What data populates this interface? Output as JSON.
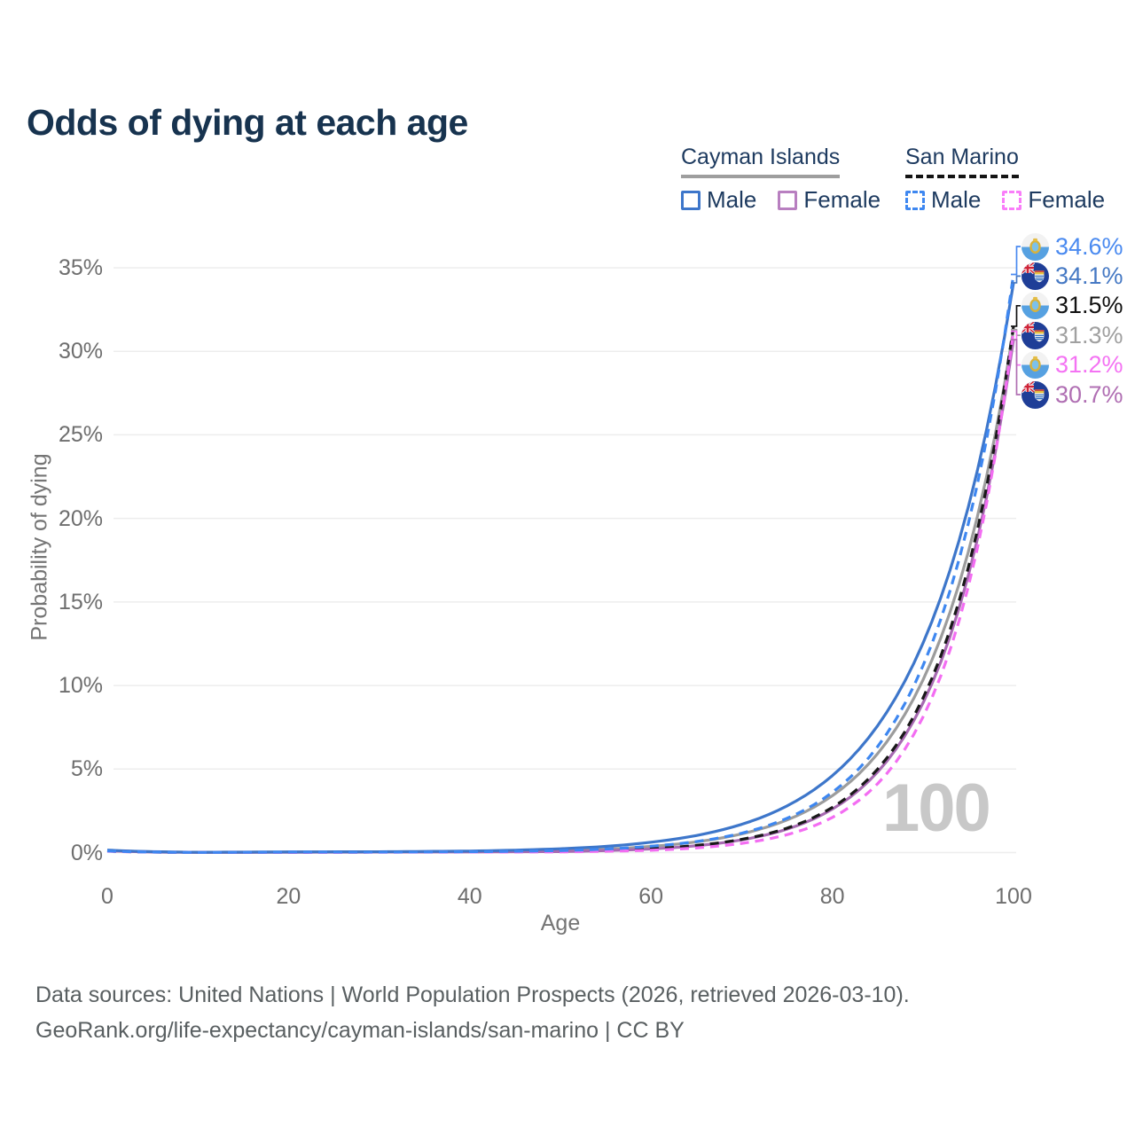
{
  "title": "Odds of dying at each age",
  "watermark": "100",
  "footer": {
    "line1": "Data sources: United Nations | World Population Prospects (2026, retrieved 2026-03-10).",
    "line2": "GeoRank.org/life-expectancy/cayman-islands/san-marino | CC BY"
  },
  "colors": {
    "title_text": "#17334f",
    "legend_text": "#1d3a5f",
    "tick_text": "#6e6e6e",
    "grid_line": "#ededed",
    "watermark": "#c8c8c8",
    "cayman_underline": "#9e9e9e",
    "sanmarino_underline": "#141414"
  },
  "legend": {
    "groups": [
      {
        "title": "Cayman Islands",
        "line_style": "solid",
        "items": [
          {
            "label": "Male",
            "color": "#3d76ca",
            "line_style": "solid"
          },
          {
            "label": "Female",
            "color": "#b87fc0",
            "line_style": "solid"
          }
        ]
      },
      {
        "title": "San Marino",
        "line_style": "dashed",
        "items": [
          {
            "label": "Male",
            "color": "#3e87f0",
            "line_style": "dashed"
          },
          {
            "label": "Female",
            "color": "#f97df9",
            "line_style": "dashed"
          }
        ]
      }
    ]
  },
  "axes": {
    "x": {
      "label": "Age",
      "tick_labels": [
        "0",
        "20",
        "40",
        "60",
        "80",
        "100"
      ],
      "tick_values": [
        0,
        20,
        40,
        60,
        80,
        100
      ],
      "range": [
        0,
        100
      ]
    },
    "y": {
      "label": "Probability of dying",
      "tick_labels": [
        "0%",
        "5%",
        "10%",
        "15%",
        "20%",
        "25%",
        "30%",
        "35%"
      ],
      "tick_values": [
        0,
        5,
        10,
        15,
        20,
        25,
        30,
        35
      ],
      "range_pct": [
        0,
        35
      ]
    }
  },
  "chart_data": {
    "type": "line",
    "title": "Odds of dying at each age",
    "xlabel": "Age",
    "ylabel": "Probability of dying",
    "xlim": [
      0,
      100
    ],
    "ylim_pct": [
      0,
      35
    ],
    "grid": "horizontal",
    "legend_position": "top-right",
    "x_ages": [
      0,
      10,
      20,
      30,
      40,
      50,
      55,
      60,
      65,
      70,
      75,
      80,
      85,
      90,
      95,
      100
    ],
    "series": [
      {
        "name": "Cayman Islands Both sexes",
        "country": "Cayman Islands",
        "sex": "Both",
        "line": "solid",
        "color": "#9c9c9c",
        "values_pct": [
          0.13,
          0.02,
          0.03,
          0.04,
          0.06,
          0.12,
          0.21,
          0.37,
          0.64,
          1.12,
          1.95,
          3.4,
          5.92,
          10.32,
          17.97,
          31.3
        ],
        "end_value_pct": 31.3,
        "end_label": "31.3%"
      },
      {
        "name": "Cayman Islands Female",
        "country": "Cayman Islands",
        "sex": "Female",
        "line": "solid",
        "color": "#a76ab2",
        "values_pct": [
          0.12,
          0.01,
          0.02,
          0.03,
          0.04,
          0.06,
          0.12,
          0.22,
          0.41,
          0.76,
          1.4,
          2.6,
          4.82,
          8.94,
          16.56,
          30.7
        ],
        "end_value_pct": 30.7,
        "end_label": "30.7%"
      },
      {
        "name": "Cayman Islands Male",
        "country": "Cayman Islands",
        "sex": "Male",
        "line": "solid",
        "color": "#3d76ca",
        "values_pct": [
          0.15,
          0.02,
          0.04,
          0.05,
          0.09,
          0.23,
          0.37,
          0.62,
          1.02,
          1.69,
          2.79,
          4.6,
          7.59,
          12.52,
          20.66,
          34.1
        ],
        "end_value_pct": 34.1,
        "end_label": "34.1%"
      },
      {
        "name": "San Marino Both sexes",
        "country": "San Marino",
        "sex": "Both",
        "line": "dashed",
        "color": "#191919",
        "values_pct": [
          0.09,
          0.01,
          0.02,
          0.03,
          0.04,
          0.07,
          0.13,
          0.23,
          0.43,
          0.79,
          1.46,
          2.7,
          4.99,
          9.23,
          17.04,
          31.5
        ],
        "end_value_pct": 31.5,
        "end_label": "31.5%"
      },
      {
        "name": "San Marino Female",
        "country": "San Marino",
        "sex": "Female",
        "line": "dashed",
        "color": "#f36df2",
        "values_pct": [
          0.08,
          0.01,
          0.01,
          0.02,
          0.03,
          0.04,
          0.08,
          0.14,
          0.28,
          0.55,
          1.07,
          2.1,
          4.12,
          8.1,
          15.89,
          31.2
        ],
        "end_value_pct": 31.2,
        "end_label": "31.2%"
      },
      {
        "name": "San Marino Male",
        "country": "San Marino",
        "sex": "Male",
        "line": "dashed",
        "color": "#3e87f0",
        "values_pct": [
          0.1,
          0.01,
          0.03,
          0.03,
          0.05,
          0.12,
          0.21,
          0.38,
          0.66,
          1.16,
          2.05,
          3.6,
          6.34,
          11.17,
          19.66,
          34.6
        ],
        "end_value_pct": 34.6,
        "end_label": "34.6%"
      }
    ]
  },
  "end_labels": [
    {
      "text": "34.6%",
      "value_pct": 34.6,
      "color": "#4a8af0",
      "flag_icon": "san-marino-flag-icon"
    },
    {
      "text": "34.1%",
      "value_pct": 34.1,
      "color": "#4679c4",
      "flag_icon": "cayman-islands-flag-icon"
    },
    {
      "text": "31.5%",
      "value_pct": 31.5,
      "color": "#111111",
      "flag_icon": "san-marino-flag-icon"
    },
    {
      "text": "31.3%",
      "value_pct": 31.3,
      "color": "#a0a0a0",
      "flag_icon": "cayman-islands-flag-icon"
    },
    {
      "text": "31.2%",
      "value_pct": 31.2,
      "color": "#f473f3",
      "flag_icon": "san-marino-flag-icon"
    },
    {
      "text": "30.7%",
      "value_pct": 30.7,
      "color": "#b06fb3",
      "flag_icon": "cayman-islands-flag-icon"
    }
  ]
}
